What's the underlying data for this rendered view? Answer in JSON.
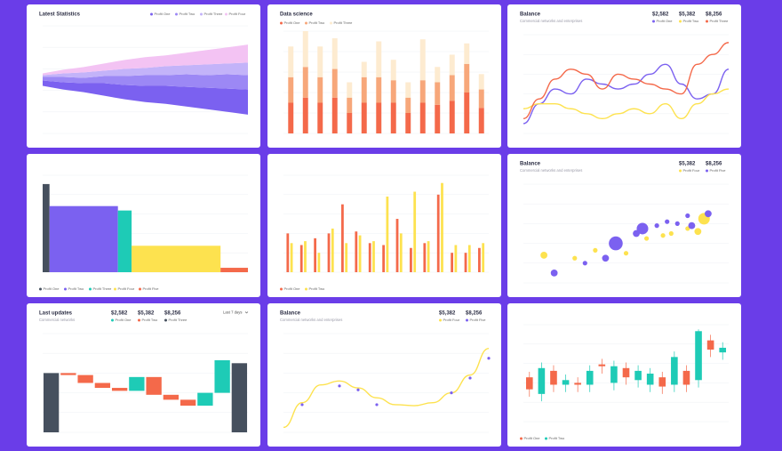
{
  "chart_data": [
    {
      "type": "stream",
      "title": "Latest Statistics",
      "legend": "top-right",
      "ylim": [
        -30,
        30
      ],
      "series": [
        {
          "name": "Profit One",
          "color": "#7b61f0",
          "values": [
            3,
            4,
            5,
            7,
            8,
            9,
            10,
            11,
            12,
            13,
            14
          ]
        },
        {
          "name": "Profit Two",
          "color": "#9c88f5",
          "values": [
            2,
            3,
            3,
            4,
            5,
            6,
            6,
            7,
            7,
            8,
            8
          ]
        },
        {
          "name": "Profit Three",
          "color": "#c3b3f9",
          "values": [
            1,
            2,
            3,
            3,
            4,
            4,
            5,
            5,
            6,
            6,
            7
          ]
        },
        {
          "name": "Profit Four",
          "color": "#f3c3f3",
          "values": [
            1,
            2,
            3,
            4,
            5,
            6,
            6,
            7,
            8,
            9,
            10
          ]
        }
      ]
    },
    {
      "type": "stacked",
      "title": "Data science",
      "legend": "top-left",
      "ylim": [
        0,
        100
      ],
      "series": [
        {
          "name": "Profit One",
          "color": "#f4694a",
          "values": [
            30,
            35,
            30,
            35,
            20,
            30,
            30,
            30,
            20,
            30,
            28,
            32,
            40,
            25
          ]
        },
        {
          "name": "Profit Two",
          "color": "#f7a77a",
          "values": [
            25,
            30,
            25,
            28,
            15,
            25,
            25,
            22,
            15,
            22,
            22,
            25,
            28,
            18
          ]
        },
        {
          "name": "Profit Three",
          "color": "#fdebd0",
          "values": [
            30,
            35,
            30,
            30,
            15,
            15,
            35,
            20,
            15,
            40,
            15,
            20,
            20,
            15
          ]
        }
      ]
    },
    {
      "type": "line",
      "title": "Balance",
      "subtitle": "Commercial networks and enterprises",
      "ylim": [
        0,
        100
      ],
      "series": [
        {
          "name": "Profit One",
          "total": "$2,582",
          "color": "#7b61f0",
          "values": [
            10,
            30,
            45,
            40,
            55,
            50,
            45,
            50,
            60,
            70,
            50,
            35,
            40,
            65
          ]
        },
        {
          "name": "Profit Two",
          "total": "$5,382",
          "color": "#fde24f",
          "values": [
            25,
            30,
            30,
            25,
            20,
            15,
            20,
            25,
            20,
            30,
            15,
            30,
            40,
            45
          ]
        },
        {
          "name": "Profit Three",
          "total": "$8,256",
          "color": "#f4694a",
          "values": [
            15,
            35,
            55,
            65,
            60,
            45,
            60,
            55,
            50,
            45,
            40,
            70,
            80,
            92
          ]
        }
      ]
    },
    {
      "type": "variwide",
      "legend": "bottom",
      "ylim": [
        0,
        110
      ],
      "categories": [
        "Profit One",
        "Profit Two",
        "Profit Three",
        "Profit Four",
        "Profit Five"
      ],
      "colors": [
        "#46505e",
        "#7b61f0",
        "#1ecbb6",
        "#fde24f",
        "#f4694a"
      ],
      "values": [
        100,
        75,
        70,
        30,
        5
      ],
      "widths": [
        1,
        10,
        2,
        13,
        4
      ]
    },
    {
      "type": "grouped",
      "legend": "bottom",
      "ylim": [
        0,
        100
      ],
      "series": [
        {
          "name": "Profit One",
          "color": "#f4694a",
          "values": [
            40,
            28,
            35,
            40,
            70,
            42,
            30,
            28,
            55,
            25,
            30,
            80,
            20,
            20,
            25
          ]
        },
        {
          "name": "Profit Two",
          "color": "#fde24f",
          "values": [
            30,
            32,
            20,
            45,
            30,
            38,
            32,
            78,
            40,
            83,
            32,
            92,
            28,
            28,
            30
          ]
        }
      ]
    },
    {
      "type": "bubble",
      "title": "Balance",
      "subtitle": "Commercial networks and enterprises",
      "xlim": [
        0,
        100
      ],
      "ylim": [
        0,
        100
      ],
      "series": [
        {
          "name": "Profit Four",
          "total": "$5,382",
          "color": "#fde24f",
          "x": [
            10,
            25,
            35,
            50,
            60,
            68,
            72,
            80,
            85,
            88
          ],
          "values": [
            28,
            25,
            33,
            30,
            45,
            48,
            50,
            55,
            52,
            65
          ],
          "sizes": [
            3,
            2,
            2,
            2,
            2,
            2,
            2,
            2,
            3,
            5
          ]
        },
        {
          "name": "Profit Five",
          "total": "$8,256",
          "color": "#7b61f0",
          "x": [
            15,
            30,
            40,
            45,
            55,
            58,
            65,
            70,
            75,
            80,
            82,
            90
          ],
          "values": [
            10,
            20,
            25,
            40,
            50,
            55,
            58,
            62,
            60,
            68,
            58,
            70
          ],
          "sizes": [
            3,
            2,
            3,
            6,
            3,
            5,
            2,
            2,
            2,
            2,
            3,
            3
          ]
        }
      ]
    },
    {
      "type": "waterfall",
      "title": "Last updates",
      "subtitle": "Commercial networks",
      "period": "Last 7 days",
      "ylim": [
        0,
        100
      ],
      "series": [
        {
          "name": "Profit One",
          "total": "$2,582",
          "color": "#1ecbb6"
        },
        {
          "name": "Profit Two",
          "total": "$5,382",
          "color": "#f4694a"
        },
        {
          "name": "Profit Three",
          "total": "$8,256",
          "color": "#46505e"
        }
      ],
      "values": [
        60,
        -2,
        -8,
        -5,
        -3,
        14,
        -18,
        -5,
        -6,
        13,
        33,
        70
      ],
      "bar_series": [
        2,
        1,
        1,
        1,
        1,
        0,
        1,
        1,
        1,
        0,
        0,
        2
      ]
    },
    {
      "type": "line",
      "title": "Balance",
      "subtitle": "Commercial networks and enterprises",
      "ylim": [
        0,
        100
      ],
      "series": [
        {
          "name": "Profit Four",
          "total": "$5,382",
          "color": "#fde24f",
          "values": [
            5,
            30,
            48,
            52,
            45,
            35,
            28,
            27,
            30,
            40,
            58,
            85
          ]
        },
        {
          "name": "Profit Five",
          "total": "$8,256",
          "color": "#7b61f0",
          "markers": true,
          "values": [
            null,
            28,
            null,
            47,
            43,
            28,
            null,
            null,
            null,
            40,
            55,
            75
          ]
        }
      ]
    },
    {
      "type": "candlestick",
      "legend": "bottom",
      "ylim": [
        0,
        105
      ],
      "series": [
        {
          "name": "Profit One",
          "color": "#f4694a"
        },
        {
          "name": "Profit Two",
          "color": "#1ecbb6"
        }
      ],
      "open": [
        48,
        30,
        55,
        40,
        42,
        40,
        62,
        42,
        58,
        45,
        40,
        48,
        40,
        55,
        45,
        88,
        75
      ],
      "close": [
        35,
        58,
        40,
        45,
        40,
        55,
        60,
        60,
        48,
        55,
        52,
        38,
        70,
        40,
        98,
        78,
        80
      ],
      "high": [
        54,
        64,
        61,
        51,
        48,
        61,
        68,
        66,
        64,
        61,
        58,
        54,
        76,
        61,
        100,
        94,
        86
      ],
      "low": [
        27,
        22,
        32,
        32,
        32,
        32,
        52,
        34,
        40,
        37,
        32,
        30,
        32,
        32,
        37,
        70,
        67
      ]
    }
  ]
}
